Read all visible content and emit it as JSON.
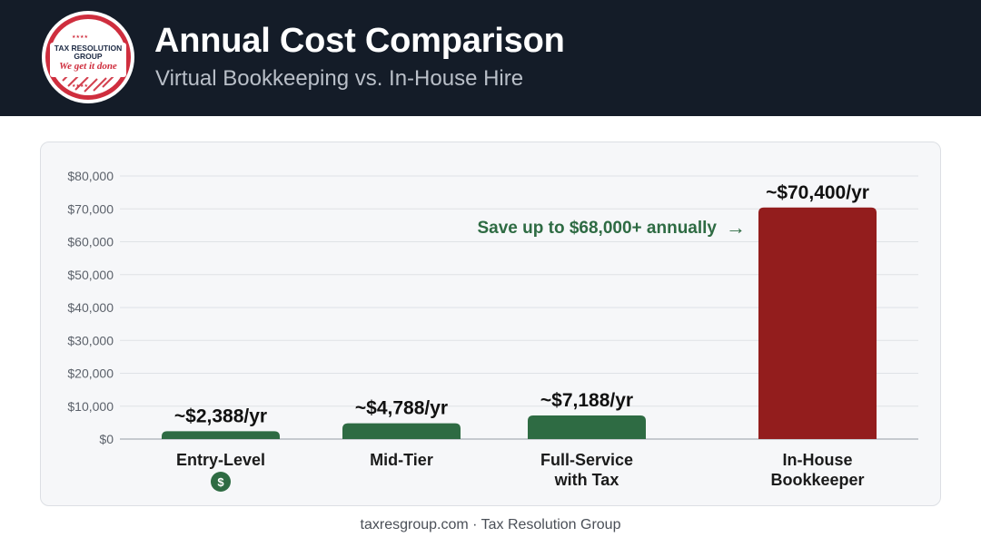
{
  "header": {
    "title": "Annual Cost Comparison",
    "subtitle": "Virtual Bookkeeping vs. In-House Hire"
  },
  "logo": {
    "line1": "TAX RESOLUTION",
    "line2": "GROUP",
    "tagline": "We get it done"
  },
  "colors": {
    "header_bg": "#141c28",
    "green": "#2e6b43",
    "red": "#931d1d",
    "logo_red": "#cf2e3e"
  },
  "chart_data": {
    "type": "bar",
    "categories": [
      [
        "Entry-Level"
      ],
      [
        "Mid-Tier"
      ],
      [
        "Full-Service",
        "with Tax"
      ],
      [
        "In-House",
        "Bookkeeper"
      ]
    ],
    "values": [
      2388,
      4788,
      7188,
      70400
    ],
    "data_labels": [
      "~$2,388/yr",
      "~$4,788/yr",
      "~$7,188/yr",
      "~$70,400/yr"
    ],
    "bar_colors": [
      "#2e6b43",
      "#2e6b43",
      "#2e6b43",
      "#931d1d"
    ],
    "yticks": [
      "$0",
      "$10,000",
      "$20,000",
      "$30,000",
      "$40,000",
      "$50,000",
      "$60,000",
      "$70,000",
      "$80,000"
    ],
    "ylim": [
      0,
      80000
    ],
    "grid": true,
    "annotation": "Save up to $68,000+ annually",
    "annotation_arrow": "→",
    "badge_icon": "dollar-badge-icon",
    "badge_text": "$"
  },
  "footer": {
    "text": "taxresgroup.com · Tax Resolution Group"
  }
}
